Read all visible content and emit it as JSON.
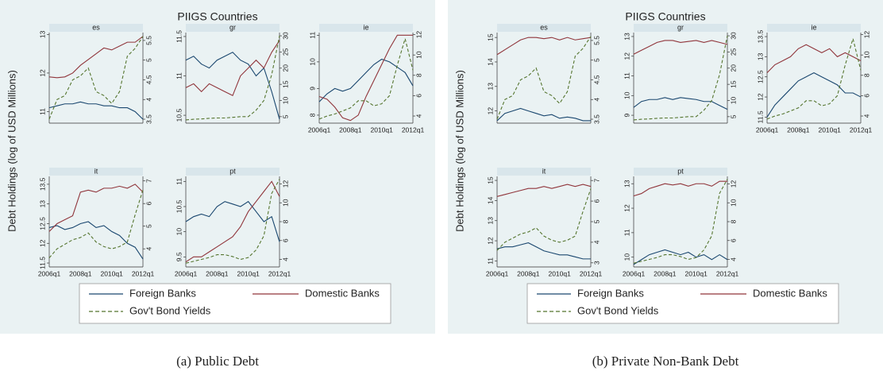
{
  "panels": [
    {
      "title": "PIIGS Countries",
      "ylabel": "Debt Holdings (log of USD Millions)",
      "caption": "(a) Public Debt"
    },
    {
      "title": "PIIGS Countries",
      "ylabel": "Debt Holdings (log of USD Millions)",
      "caption": "(b) Private Non-Bank Debt"
    }
  ],
  "chart_data": [
    {
      "type": "line",
      "title": "es",
      "ylim": [
        10.7,
        13.05
      ],
      "yticks": [
        11,
        12,
        13
      ],
      "y2lim": [
        3.4,
        5.7
      ],
      "y2ticks": [
        3.5,
        4,
        4.5,
        5,
        5.5
      ],
      "series": [
        {
          "name": "Foreign Banks",
          "color": "#1a476f",
          "values": [
            11.1,
            11.15,
            11.2,
            11.2,
            11.25,
            11.2,
            11.2,
            11.15,
            11.15,
            11.1,
            11.1,
            11.0,
            10.8
          ]
        },
        {
          "name": "Domestic Banks",
          "color": "#90353b",
          "values": [
            11.9,
            11.88,
            11.9,
            12.0,
            12.2,
            12.35,
            12.5,
            12.65,
            12.6,
            12.7,
            12.8,
            12.8,
            12.95
          ]
        },
        {
          "name": "Gov't Bond Yields",
          "color": "#55752f",
          "dashed": true,
          "axis": "y2",
          "values": [
            3.5,
            4.0,
            4.1,
            4.5,
            4.6,
            4.8,
            4.2,
            4.1,
            3.9,
            4.2,
            5.1,
            5.3,
            5.6
          ]
        }
      ]
    },
    {
      "type": "line",
      "title": "gr",
      "ylim": [
        10.4,
        11.55
      ],
      "yticks": [
        10.5,
        11,
        11.5
      ],
      "y2lim": [
        3,
        31
      ],
      "y2ticks": [
        5,
        10,
        15,
        20,
        25,
        30
      ],
      "series": [
        {
          "color": "#1a476f",
          "values": [
            11.2,
            11.25,
            11.15,
            11.1,
            11.2,
            11.25,
            11.3,
            11.2,
            11.15,
            11.0,
            11.1,
            10.8,
            10.45
          ]
        },
        {
          "color": "#90353b",
          "values": [
            10.85,
            10.9,
            10.8,
            10.9,
            10.85,
            10.8,
            10.75,
            11.0,
            11.1,
            11.2,
            11.1,
            11.3,
            11.45
          ]
        },
        {
          "color": "#55752f",
          "dashed": true,
          "axis": "y2",
          "values": [
            4,
            4.2,
            4.3,
            4.5,
            4.6,
            4.6,
            4.8,
            5,
            5,
            7,
            10,
            18,
            30
          ]
        }
      ]
    },
    {
      "type": "line",
      "title": "ie",
      "categories": [
        "2006q1",
        null,
        null,
        null,
        "2008q1",
        null,
        null,
        null,
        "2010q1",
        null,
        null,
        null,
        "2012q1"
      ],
      "ylim": [
        7.7,
        11.1
      ],
      "yticks": [
        8,
        9,
        10,
        11
      ],
      "y2lim": [
        3.3,
        12.2
      ],
      "y2ticks": [
        4,
        6,
        8,
        10,
        12
      ],
      "series": [
        {
          "color": "#1a476f",
          "values": [
            8.5,
            8.8,
            9.0,
            8.9,
            9.0,
            9.3,
            9.6,
            9.9,
            10.1,
            10.0,
            9.8,
            9.6,
            9.1
          ]
        },
        {
          "color": "#90353b",
          "values": [
            8.7,
            8.6,
            8.3,
            7.9,
            7.8,
            8.0,
            8.7,
            9.3,
            9.9,
            10.5,
            11.0,
            11.0,
            11.0
          ]
        },
        {
          "color": "#55752f",
          "dashed": true,
          "axis": "y2",
          "values": [
            3.7,
            4.0,
            4.2,
            4.5,
            4.8,
            5.5,
            5.5,
            5.0,
            5.2,
            6.0,
            9.0,
            11.6,
            8.5
          ]
        }
      ]
    },
    {
      "type": "line",
      "title": "it",
      "categories": [
        "2006q1",
        null,
        null,
        null,
        "2008q1",
        null,
        null,
        null,
        "2010q1",
        null,
        null,
        null,
        "2012q1"
      ],
      "ylim": [
        11.4,
        13.7
      ],
      "yticks": [
        11.5,
        12,
        12.5,
        13,
        13.5
      ],
      "y2lim": [
        3.2,
        7.2
      ],
      "y2ticks": [
        4,
        5,
        6,
        7
      ],
      "series": [
        {
          "color": "#1a476f",
          "values": [
            12.4,
            12.45,
            12.35,
            12.4,
            12.5,
            12.55,
            12.4,
            12.45,
            12.3,
            12.2,
            12.0,
            11.9,
            11.6
          ]
        },
        {
          "color": "#90353b",
          "values": [
            12.3,
            12.5,
            12.6,
            12.7,
            13.3,
            13.35,
            13.3,
            13.4,
            13.4,
            13.45,
            13.4,
            13.5,
            13.3
          ]
        },
        {
          "color": "#55752f",
          "dashed": true,
          "axis": "y2",
          "values": [
            3.6,
            4.0,
            4.2,
            4.4,
            4.5,
            4.7,
            4.3,
            4.1,
            4.0,
            4.1,
            4.3,
            5.5,
            6.6
          ]
        }
      ]
    },
    {
      "type": "line",
      "title": "pt",
      "categories": [
        "2006q1",
        null,
        null,
        null,
        "2008q1",
        null,
        null,
        null,
        "2010q1",
        null,
        null,
        null,
        "2012q1"
      ],
      "ylim": [
        9.3,
        11.1
      ],
      "yticks": [
        9.5,
        10,
        10.5,
        11
      ],
      "y2lim": [
        3.2,
        12.8
      ],
      "y2ticks": [
        4,
        6,
        8,
        10,
        12
      ],
      "series": [
        {
          "color": "#1a476f",
          "values": [
            10.2,
            10.3,
            10.35,
            10.3,
            10.5,
            10.6,
            10.55,
            10.5,
            10.6,
            10.4,
            10.2,
            10.3,
            9.8
          ]
        },
        {
          "color": "#90353b",
          "values": [
            9.4,
            9.5,
            9.5,
            9.6,
            9.7,
            9.8,
            9.9,
            10.1,
            10.4,
            10.6,
            10.8,
            11.0,
            10.7
          ]
        },
        {
          "color": "#55752f",
          "dashed": true,
          "axis": "y2",
          "values": [
            3.6,
            3.8,
            4.0,
            4.2,
            4.5,
            4.5,
            4.3,
            4.0,
            4.2,
            5.0,
            6.5,
            11.0,
            12.5
          ]
        }
      ]
    },
    {
      "type": "line",
      "title": "es",
      "ylim": [
        11.5,
        15.2
      ],
      "yticks": [
        12,
        13,
        14,
        15
      ],
      "y2lim": [
        3.4,
        5.7
      ],
      "y2ticks": [
        3.5,
        4,
        4.5,
        5,
        5.5
      ],
      "series": [
        {
          "name": "Foreign Banks",
          "color": "#1a476f",
          "values": [
            11.6,
            11.9,
            12.0,
            12.1,
            12.0,
            11.9,
            11.8,
            11.85,
            11.7,
            11.75,
            11.7,
            11.6,
            11.6
          ]
        },
        {
          "name": "Domestic Banks",
          "color": "#90353b",
          "values": [
            14.3,
            14.5,
            14.7,
            14.9,
            15.0,
            15.0,
            14.95,
            15.0,
            14.9,
            15.0,
            14.9,
            14.95,
            15.0
          ]
        },
        {
          "name": "Gov't Bond Yields",
          "color": "#55752f",
          "dashed": true,
          "axis": "y2",
          "values": [
            3.5,
            4.0,
            4.1,
            4.5,
            4.6,
            4.8,
            4.2,
            4.1,
            3.9,
            4.2,
            5.1,
            5.3,
            5.6
          ]
        }
      ]
    },
    {
      "type": "line",
      "title": "gr",
      "ylim": [
        8.6,
        13.2
      ],
      "yticks": [
        9,
        10,
        11,
        12,
        13
      ],
      "y2lim": [
        3,
        31
      ],
      "y2ticks": [
        5,
        10,
        15,
        20,
        25,
        30
      ],
      "series": [
        {
          "color": "#1a476f",
          "values": [
            9.4,
            9.7,
            9.8,
            9.8,
            9.9,
            9.8,
            9.9,
            9.85,
            9.8,
            9.7,
            9.7,
            9.5,
            9.3
          ]
        },
        {
          "color": "#90353b",
          "values": [
            12.1,
            12.3,
            12.5,
            12.7,
            12.8,
            12.8,
            12.7,
            12.75,
            12.8,
            12.7,
            12.8,
            12.7,
            12.6
          ]
        },
        {
          "color": "#55752f",
          "dashed": true,
          "axis": "y2",
          "values": [
            4,
            4.2,
            4.3,
            4.5,
            4.6,
            4.6,
            4.8,
            5,
            5,
            7,
            10,
            18,
            30
          ]
        }
      ]
    },
    {
      "type": "line",
      "title": "ie",
      "categories": [
        "2006q1",
        null,
        null,
        null,
        "2008q1",
        null,
        null,
        null,
        "2010q1",
        null,
        null,
        null,
        "2012q1"
      ],
      "ylim": [
        11.35,
        13.6
      ],
      "yticks": [
        11.5,
        12,
        12.5,
        13,
        13.5
      ],
      "y2lim": [
        3.3,
        12.2
      ],
      "y2ticks": [
        4,
        6,
        8,
        10,
        12
      ],
      "series": [
        {
          "color": "#1a476f",
          "values": [
            11.5,
            11.8,
            12.0,
            12.2,
            12.4,
            12.5,
            12.6,
            12.5,
            12.4,
            12.3,
            12.1,
            12.1,
            12.0
          ]
        },
        {
          "color": "#90353b",
          "values": [
            12.6,
            12.8,
            12.9,
            13.0,
            13.2,
            13.3,
            13.2,
            13.1,
            13.2,
            13.0,
            13.1,
            13.0,
            12.9
          ]
        },
        {
          "color": "#55752f",
          "dashed": true,
          "axis": "y2",
          "values": [
            3.7,
            4.0,
            4.2,
            4.5,
            4.8,
            5.5,
            5.5,
            5.0,
            5.2,
            6.0,
            9.0,
            11.6,
            8.5
          ]
        }
      ]
    },
    {
      "type": "line",
      "title": "it",
      "categories": [
        "2006q1",
        null,
        null,
        null,
        "2008q1",
        null,
        null,
        null,
        "2010q1",
        null,
        null,
        null,
        "2012q1"
      ],
      "ylim": [
        10.7,
        15.2
      ],
      "yticks": [
        11,
        12,
        13,
        14,
        15
      ],
      "y2lim": [
        2.8,
        7.2
      ],
      "y2ticks": [
        3,
        4,
        5,
        6,
        7
      ],
      "series": [
        {
          "color": "#1a476f",
          "values": [
            11.6,
            11.7,
            11.7,
            11.8,
            11.9,
            11.7,
            11.5,
            11.4,
            11.3,
            11.3,
            11.2,
            11.1,
            11.1
          ]
        },
        {
          "color": "#90353b",
          "values": [
            14.2,
            14.3,
            14.4,
            14.5,
            14.6,
            14.6,
            14.7,
            14.6,
            14.7,
            14.8,
            14.7,
            14.8,
            14.7
          ]
        },
        {
          "color": "#55752f",
          "dashed": true,
          "axis": "y2",
          "values": [
            3.6,
            4.0,
            4.2,
            4.4,
            4.5,
            4.7,
            4.3,
            4.1,
            4.0,
            4.1,
            4.3,
            5.5,
            6.6
          ]
        }
      ]
    },
    {
      "type": "line",
      "title": "pt",
      "categories": [
        "2006q1",
        null,
        null,
        null,
        "2008q1",
        null,
        null,
        null,
        "2010q1",
        null,
        null,
        null,
        "2012q1"
      ],
      "ylim": [
        9.6,
        13.3
      ],
      "yticks": [
        10,
        11,
        12,
        13
      ],
      "y2lim": [
        3.2,
        12.8
      ],
      "y2ticks": [
        4,
        6,
        8,
        10,
        12
      ],
      "series": [
        {
          "color": "#1a476f",
          "values": [
            9.7,
            9.9,
            10.1,
            10.2,
            10.3,
            10.2,
            10.1,
            10.2,
            10.0,
            10.1,
            9.9,
            10.1,
            9.9
          ]
        },
        {
          "color": "#90353b",
          "values": [
            12.5,
            12.6,
            12.8,
            12.9,
            13.0,
            12.95,
            13.0,
            12.9,
            13.0,
            13.0,
            12.9,
            13.1,
            13.1
          ]
        },
        {
          "color": "#55752f",
          "dashed": true,
          "axis": "y2",
          "values": [
            3.6,
            3.8,
            4.0,
            4.2,
            4.5,
            4.5,
            4.3,
            4.0,
            4.2,
            5.0,
            6.5,
            11.0,
            12.5
          ]
        }
      ]
    }
  ]
}
